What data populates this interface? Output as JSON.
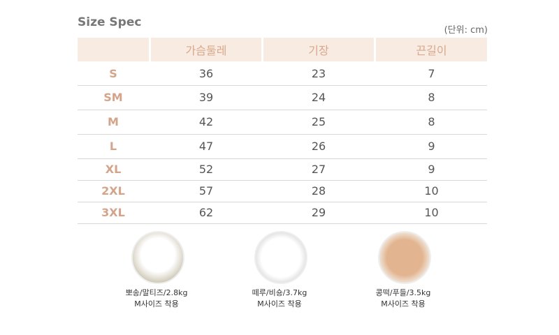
{
  "title": "Size Spec",
  "unit": "(단위: cm)",
  "table": {
    "headers": [
      "가슴둘레",
      "기장",
      "끈길이"
    ],
    "rows": [
      [
        "S",
        36,
        23,
        7
      ],
      [
        "SM",
        39,
        24,
        8
      ],
      [
        "M",
        42,
        25,
        8
      ],
      [
        "L",
        47,
        26,
        9
      ],
      [
        "XL",
        52,
        27,
        9
      ],
      [
        "2XL",
        57,
        28,
        10
      ],
      [
        "3XL",
        62,
        29,
        10
      ]
    ]
  },
  "models": [
    {
      "name": "뽀송/말티즈/2.8kg",
      "size": "M사이즈 착용"
    },
    {
      "name": "떼루/비숑/3.7kg",
      "size": "M사이즈 착용"
    },
    {
      "name": "콩떡/푸들/3.5kg",
      "size": "M사이즈 착용"
    }
  ]
}
